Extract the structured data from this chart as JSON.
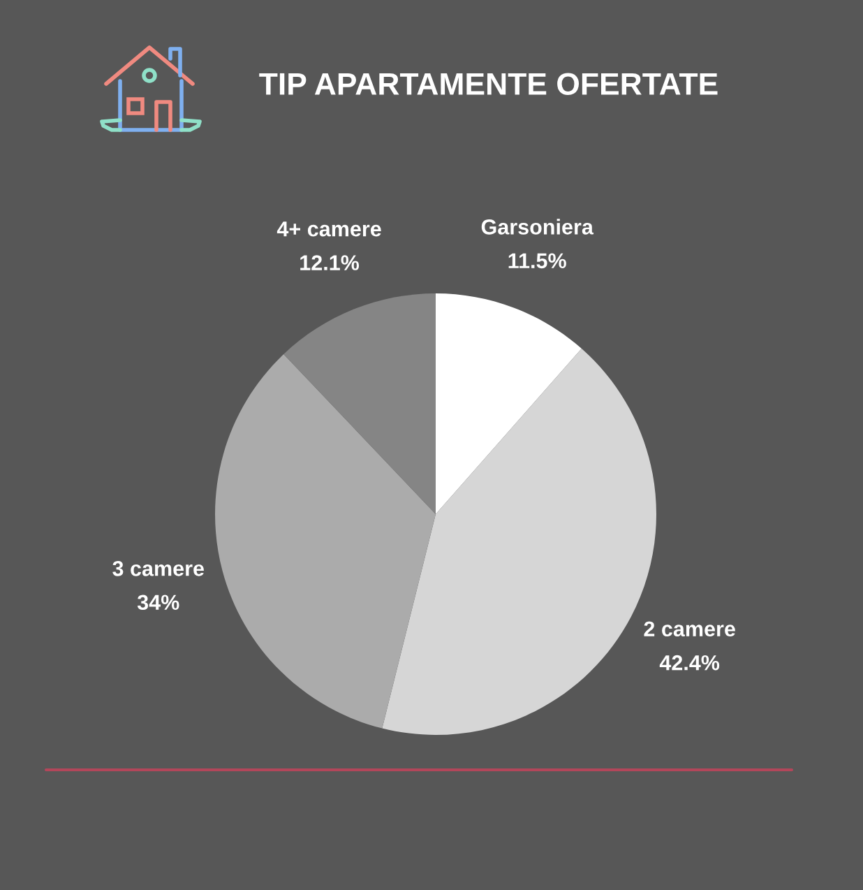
{
  "chart_data": {
    "type": "pie",
    "title": "TIP APARTAMENTE OFERTATE",
    "categories": [
      "Garsoniera",
      "2 camere",
      "3 camere",
      "4+ camere"
    ],
    "values": [
      11.5,
      42.4,
      34,
      12.1
    ],
    "colors": [
      "#ffffff",
      "#d6d6d6",
      "#ababab",
      "#858585"
    ],
    "value_labels": [
      "11.5%",
      "42.4%",
      "34%",
      "12.1%"
    ]
  }
}
